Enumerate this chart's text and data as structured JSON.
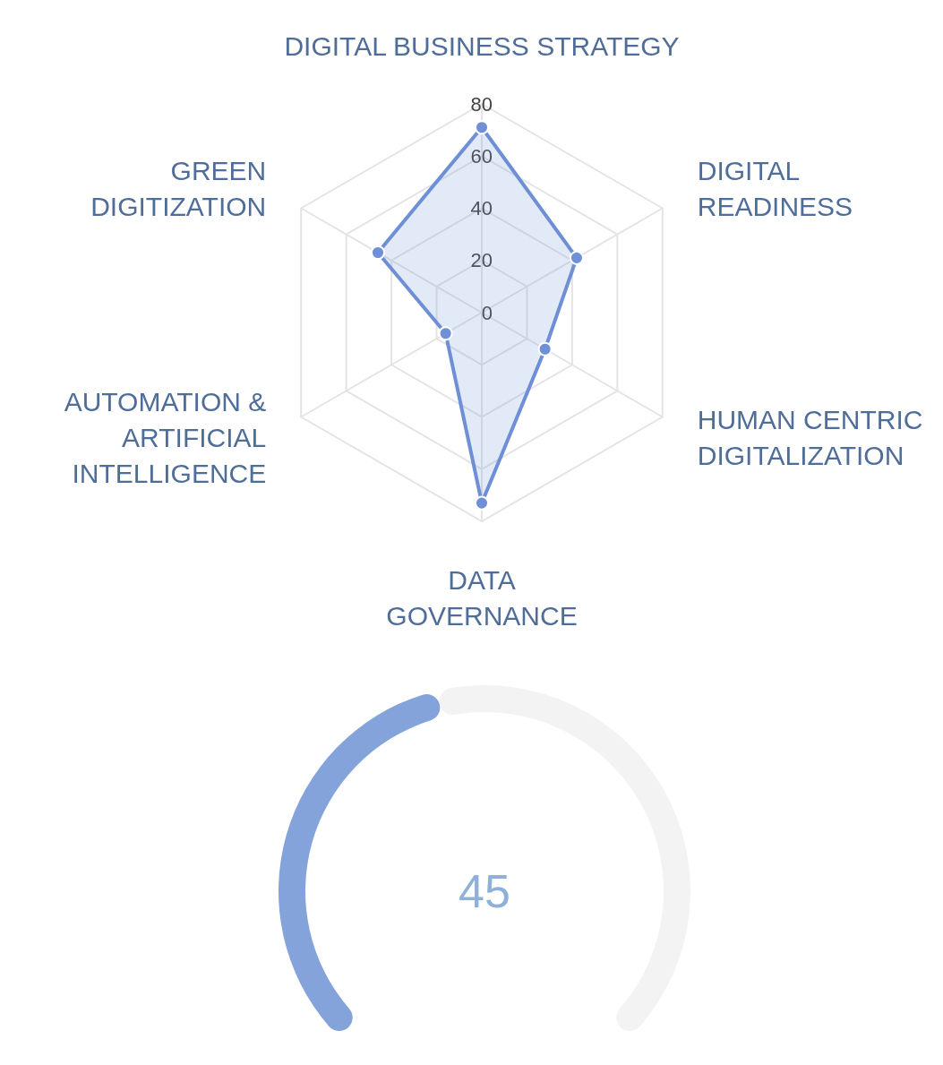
{
  "chart_data": [
    {
      "type": "radar",
      "categories": [
        "DIGITAL BUSINESS STRATEGY",
        "DIGITAL READINESS",
        "HUMAN CENTRIC DIGITALIZATION",
        "DATA GOVERNANCE",
        "AUTOMATION & ARTIFICIAL INTELLIGENCE",
        "GREEN DIGITIZATION"
      ],
      "series": [
        {
          "color": "#6f8fd6",
          "values": [
            71,
            42,
            28,
            73,
            16,
            46
          ]
        }
      ],
      "ylim": [
        0,
        80
      ],
      "yticks": [
        0,
        20,
        40,
        60,
        80
      ],
      "marker": "circle"
    },
    {
      "type": "donut",
      "categories": [
        null,
        null
      ],
      "values": [
        45,
        55
      ],
      "colors": [
        "#84a3db",
        "#f3f3f3"
      ],
      "value_labels": [
        "45",
        null
      ]
    }
  ]
}
